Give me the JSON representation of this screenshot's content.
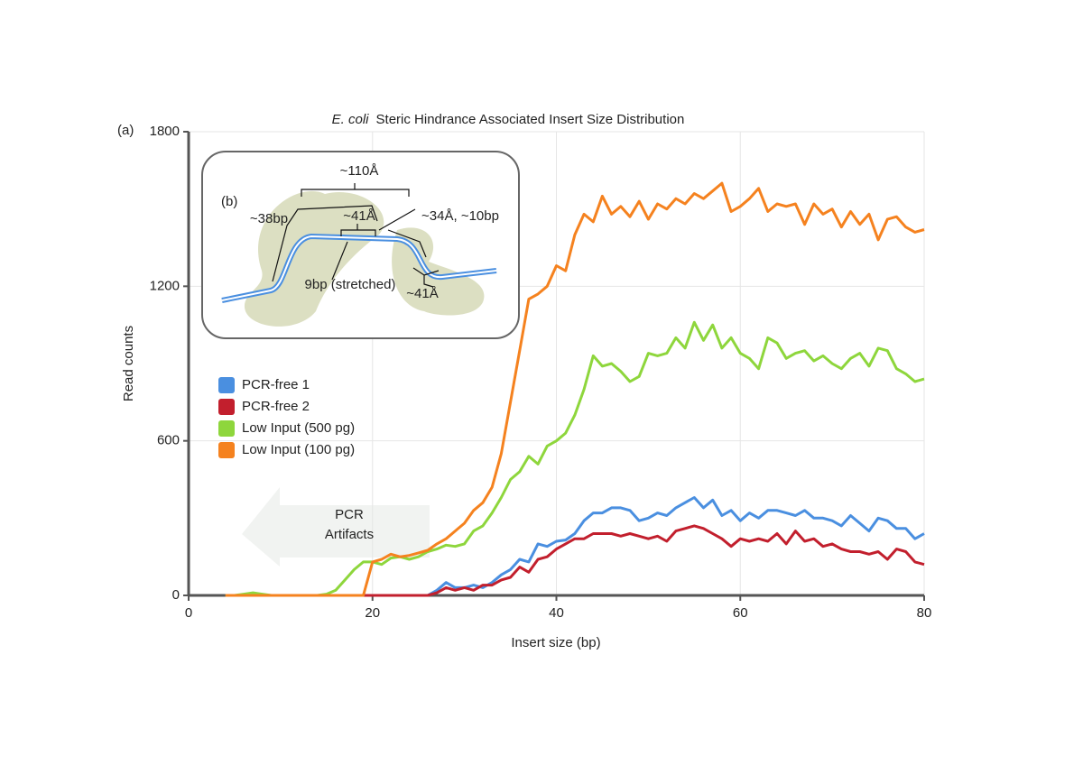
{
  "chart_data": {
    "type": "line",
    "panel_label": "(a)",
    "title_species": "E. coli",
    "title": "Steric Hindrance Associated Insert Size Distribution",
    "x_label": "Insert size (bp)",
    "y_label": "Read counts",
    "xlim": [
      0,
      80
    ],
    "xticks": [
      0,
      20,
      40,
      60,
      80
    ],
    "ylim": [
      0,
      1800
    ],
    "yticks": [
      0,
      600,
      1200,
      1800
    ],
    "grid": true,
    "legend": "center left",
    "annotation": [
      "PCR",
      "Artifacts"
    ],
    "inset": {
      "label": "(b)",
      "labels": [
        "~110Å",
        "~38bp",
        "~41Å",
        "~34Å, ~10bp",
        "9bp (stretched)",
        "~41Å"
      ]
    },
    "x": [
      4,
      5,
      6,
      7,
      8,
      9,
      10,
      11,
      12,
      13,
      14,
      15,
      16,
      17,
      18,
      19,
      20,
      21,
      22,
      23,
      24,
      25,
      26,
      27,
      28,
      29,
      30,
      31,
      32,
      33,
      34,
      35,
      36,
      37,
      38,
      39,
      40,
      41,
      42,
      43,
      44,
      45,
      46,
      47,
      48,
      49,
      50,
      51,
      52,
      53,
      54,
      55,
      56,
      57,
      58,
      59,
      60,
      61,
      62,
      63,
      64,
      65,
      66,
      67,
      68,
      69,
      70,
      71,
      72,
      73,
      74,
      75,
      76,
      77,
      78,
      79,
      80
    ],
    "series": [
      {
        "name": "PCR-free 1",
        "color": "#4a8fe0",
        "values": [
          null,
          null,
          null,
          null,
          null,
          null,
          null,
          null,
          null,
          null,
          null,
          null,
          null,
          null,
          null,
          0,
          0,
          0,
          0,
          0,
          0,
          0,
          0,
          20,
          50,
          30,
          30,
          40,
          30,
          50,
          80,
          100,
          140,
          130,
          200,
          190,
          210,
          215,
          240,
          290,
          320,
          320,
          340,
          340,
          330,
          290,
          300,
          320,
          310,
          340,
          360,
          380,
          340,
          370,
          310,
          330,
          290,
          320,
          300,
          330,
          330,
          320,
          310,
          330,
          300,
          300,
          290,
          270,
          310,
          280,
          250,
          300,
          290,
          260,
          260,
          220,
          240
        ]
      },
      {
        "name": "PCR-free 2",
        "color": "#c21f2d",
        "values": [
          null,
          null,
          null,
          null,
          null,
          null,
          null,
          null,
          null,
          null,
          null,
          null,
          null,
          null,
          null,
          0,
          0,
          0,
          0,
          0,
          0,
          0,
          0,
          10,
          30,
          20,
          30,
          20,
          40,
          40,
          60,
          70,
          110,
          90,
          140,
          150,
          180,
          200,
          220,
          220,
          240,
          240,
          240,
          230,
          240,
          230,
          220,
          230,
          210,
          250,
          260,
          270,
          260,
          240,
          220,
          190,
          220,
          210,
          220,
          210,
          240,
          200,
          250,
          210,
          220,
          190,
          200,
          180,
          170,
          170,
          160,
          170,
          140,
          180,
          170,
          130,
          120
        ]
      },
      {
        "name": "Low Input (500 pg)",
        "color": "#8ed63c",
        "values": [
          0,
          0,
          5,
          10,
          5,
          0,
          0,
          0,
          0,
          0,
          0,
          5,
          20,
          60,
          100,
          130,
          130,
          120,
          145,
          150,
          140,
          150,
          170,
          180,
          195,
          190,
          200,
          250,
          270,
          320,
          380,
          450,
          480,
          540,
          510,
          580,
          600,
          630,
          700,
          800,
          930,
          890,
          900,
          870,
          830,
          850,
          940,
          930,
          940,
          1000,
          960,
          1060,
          990,
          1050,
          960,
          1000,
          940,
          920,
          880,
          1000,
          980,
          920,
          940,
          950,
          910,
          930,
          900,
          880,
          920,
          940,
          890,
          960,
          950,
          880,
          860,
          830,
          840
        ]
      },
      {
        "name": "Low Input (100 pg)",
        "color": "#f5821f",
        "values": [
          0,
          0,
          0,
          0,
          0,
          0,
          0,
          0,
          0,
          0,
          0,
          0,
          0,
          0,
          0,
          0,
          130,
          140,
          160,
          150,
          155,
          165,
          175,
          200,
          220,
          250,
          280,
          330,
          360,
          420,
          550,
          750,
          950,
          1150,
          1170,
          1200,
          1280,
          1260,
          1400,
          1480,
          1450,
          1550,
          1480,
          1510,
          1470,
          1530,
          1460,
          1520,
          1500,
          1540,
          1520,
          1560,
          1540,
          1570,
          1600,
          1490,
          1510,
          1540,
          1580,
          1490,
          1520,
          1510,
          1520,
          1440,
          1520,
          1480,
          1500,
          1430,
          1490,
          1440,
          1480,
          1380,
          1460,
          1470,
          1430,
          1410,
          1420
        ]
      }
    ]
  }
}
